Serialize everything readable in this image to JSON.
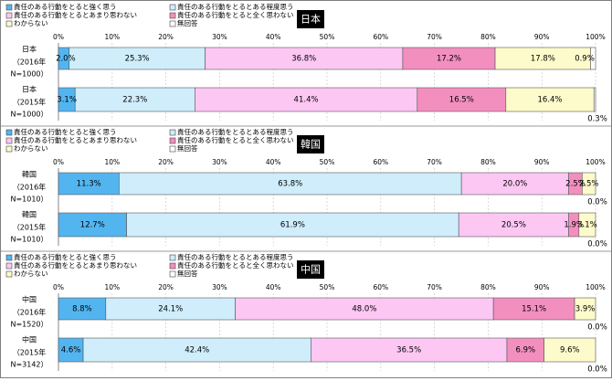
{
  "legend": [
    "責任のある行動をとると強く思う",
    "責任のある行動をとるとある程度思う",
    "責任のある行動をとるとあまり思わない",
    "責任のある行動をとると全く思わない",
    "わからない",
    "無回答"
  ],
  "colors": [
    "#53b5f0",
    "#cfedfb",
    "#fcc7f3",
    "#f28fbf",
    "#fdfbcb",
    "#ffffff"
  ],
  "chart_data": [
    {
      "type": "bar",
      "orientation": "horizontal",
      "stacked": true,
      "title": "日本",
      "xlim": [
        0,
        100
      ],
      "ticks": [
        "0%",
        "10%",
        "20%",
        "30%",
        "40%",
        "50%",
        "60%",
        "70%",
        "80%",
        "90%",
        "100%"
      ],
      "categories": [
        [
          "日本",
          "（2016年",
          "N=1000）"
        ],
        [
          "日本",
          "（2015年",
          "N=1000）"
        ]
      ],
      "series_values": [
        [
          2.0,
          25.3,
          36.8,
          17.2,
          17.8,
          0.9
        ],
        [
          3.1,
          22.3,
          41.4,
          16.5,
          16.4,
          0.3
        ]
      ],
      "value_labels": [
        [
          "2.0%",
          "25.3%",
          "36.8%",
          "17.2%",
          "17.8%",
          "0.9%"
        ],
        [
          "3.1%",
          "22.3%",
          "41.4%",
          "16.5%",
          "16.4%",
          "0.3%"
        ]
      ]
    },
    {
      "type": "bar",
      "orientation": "horizontal",
      "stacked": true,
      "title": "韓国",
      "xlim": [
        0,
        100
      ],
      "ticks": [
        "0%",
        "10%",
        "20%",
        "30%",
        "40%",
        "50%",
        "60%",
        "70%",
        "80%",
        "90%",
        "100%"
      ],
      "categories": [
        [
          "韓国",
          "（2016年",
          "N=1010）"
        ],
        [
          "韓国",
          "（2015年",
          "N=1010）"
        ]
      ],
      "series_values": [
        [
          11.3,
          63.8,
          20.0,
          2.5,
          2.5,
          0.0
        ],
        [
          12.7,
          61.9,
          20.5,
          1.9,
          3.1,
          0.0
        ]
      ],
      "value_labels": [
        [
          "11.3%",
          "63.8%",
          "20.0%",
          "2.5%",
          "2.5%",
          "0.0%"
        ],
        [
          "12.7%",
          "61.9%",
          "20.5%",
          "1.9%",
          "3.1%",
          "0.0%"
        ]
      ]
    },
    {
      "type": "bar",
      "orientation": "horizontal",
      "stacked": true,
      "title": "中国",
      "xlim": [
        0,
        100
      ],
      "ticks": [
        "0%",
        "10%",
        "20%",
        "30%",
        "40%",
        "50%",
        "60%",
        "70%",
        "80%",
        "90%",
        "100%"
      ],
      "categories": [
        [
          "中国",
          "（2016年",
          "N=1520）"
        ],
        [
          "中国",
          "（2015年",
          "N=3142）"
        ]
      ],
      "series_values": [
        [
          8.8,
          24.1,
          48.0,
          15.1,
          3.9,
          0.0
        ],
        [
          4.6,
          42.4,
          36.5,
          6.9,
          9.6,
          0.0
        ]
      ],
      "value_labels": [
        [
          "8.8%",
          "24.1%",
          "48.0%",
          "15.1%",
          "3.9%",
          "0.0%"
        ],
        [
          "4.6%",
          "42.4%",
          "36.5%",
          "6.9%",
          "9.6%",
          "0.0%"
        ]
      ]
    }
  ]
}
